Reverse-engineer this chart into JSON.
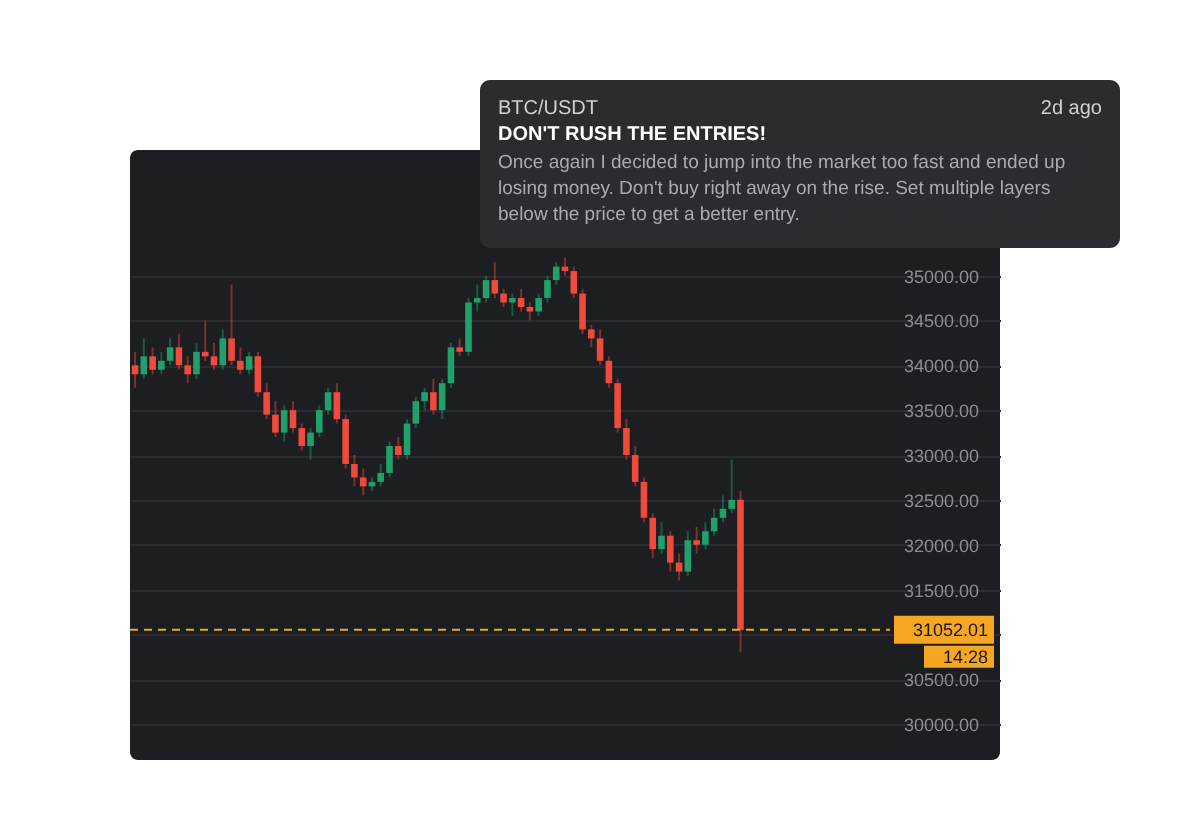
{
  "chart_data": {
    "type": "candlestick",
    "title": "DON'T RUSH THE ENTRIES!",
    "subtitle": "BTC/USDT",
    "annotations": [
      "2d ago",
      "Once again I decided to jump into the market too fast and ended up losing money. Don't buy right away on the rise. Set multiple layers below the price to get a better entry.",
      "14:28"
    ],
    "categories": [
      null,
      null,
      null,
      null,
      null,
      null,
      null,
      null,
      null,
      null,
      null,
      null,
      null,
      null,
      null,
      null,
      null,
      null,
      null,
      null,
      null,
      null,
      null,
      null,
      null,
      null,
      null,
      null,
      null,
      null,
      null,
      null,
      null,
      null,
      null,
      null,
      null,
      null,
      null,
      null,
      null,
      null,
      null,
      null,
      null,
      null,
      null,
      null,
      null,
      null,
      null,
      null,
      null,
      null,
      null,
      null,
      null,
      null,
      null,
      null,
      null,
      null,
      null,
      null,
      null,
      null,
      null,
      null,
      null,
      null,
      null,
      null,
      null,
      null,
      null,
      null,
      null,
      null,
      null,
      null,
      null,
      null,
      null,
      null,
      null,
      null,
      null,
      null,
      null,
      null,
      null,
      null,
      null,
      null,
      null,
      null,
      null,
      null,
      null
    ],
    "ohlc": [
      [
        34000,
        34150,
        33750,
        33900
      ],
      [
        33900,
        34300,
        33850,
        34100
      ],
      [
        34100,
        34200,
        33900,
        33950
      ],
      [
        33950,
        34150,
        33900,
        34050
      ],
      [
        34050,
        34300,
        34000,
        34200
      ],
      [
        34200,
        34350,
        33950,
        34000
      ],
      [
        34000,
        34100,
        33800,
        33900
      ],
      [
        33900,
        34250,
        33850,
        34150
      ],
      [
        34150,
        34500,
        34050,
        34100
      ],
      [
        34100,
        34250,
        33950,
        34000
      ],
      [
        34000,
        34400,
        33950,
        34300
      ],
      [
        34300,
        34900,
        34000,
        34050
      ],
      [
        34050,
        34200,
        33900,
        33950
      ],
      [
        33950,
        34150,
        33900,
        34100
      ],
      [
        34100,
        34150,
        33650,
        33700
      ],
      [
        33700,
        33800,
        33400,
        33450
      ],
      [
        33450,
        33600,
        33200,
        33250
      ],
      [
        33250,
        33550,
        33150,
        33500
      ],
      [
        33500,
        33600,
        33250,
        33300
      ],
      [
        33300,
        33350,
        33050,
        33100
      ],
      [
        33100,
        33300,
        32950,
        33250
      ],
      [
        33250,
        33550,
        33200,
        33500
      ],
      [
        33500,
        33750,
        33450,
        33700
      ],
      [
        33700,
        33800,
        33350,
        33400
      ],
      [
        33400,
        33450,
        32850,
        32900
      ],
      [
        32900,
        33000,
        32650,
        32750
      ],
      [
        32750,
        32850,
        32550,
        32650
      ],
      [
        32650,
        32750,
        32600,
        32700
      ],
      [
        32700,
        32900,
        32650,
        32800
      ],
      [
        32800,
        33150,
        32750,
        33100
      ],
      [
        33100,
        33200,
        32950,
        33000
      ],
      [
        33000,
        33400,
        32950,
        33350
      ],
      [
        33350,
        33650,
        33300,
        33600
      ],
      [
        33600,
        33750,
        33500,
        33700
      ],
      [
        33700,
        33850,
        33450,
        33500
      ],
      [
        33500,
        33850,
        33400,
        33800
      ],
      [
        33800,
        34250,
        33750,
        34200
      ],
      [
        34200,
        34300,
        34100,
        34150
      ],
      [
        34150,
        34750,
        34100,
        34700
      ],
      [
        34700,
        34900,
        34600,
        34750
      ],
      [
        34750,
        35000,
        34700,
        34950
      ],
      [
        34950,
        35150,
        34750,
        34800
      ],
      [
        34800,
        34850,
        34650,
        34700
      ],
      [
        34700,
        34800,
        34550,
        34750
      ],
      [
        34750,
        34850,
        34600,
        34650
      ],
      [
        34650,
        34700,
        34500,
        34600
      ],
      [
        34600,
        34800,
        34550,
        34750
      ],
      [
        34750,
        35000,
        34700,
        34950
      ],
      [
        34950,
        35150,
        34900,
        35100
      ],
      [
        35100,
        35200,
        35000,
        35050
      ],
      [
        35050,
        35100,
        34750,
        34800
      ],
      [
        34800,
        34850,
        34350,
        34400
      ],
      [
        34400,
        34450,
        34200,
        34300
      ],
      [
        34300,
        34400,
        34000,
        34050
      ],
      [
        34050,
        34100,
        33750,
        33800
      ],
      [
        33800,
        33850,
        33250,
        33300
      ],
      [
        33300,
        33400,
        32950,
        33000
      ],
      [
        33000,
        33100,
        32650,
        32700
      ],
      [
        32700,
        32750,
        32250,
        32300
      ],
      [
        32300,
        32350,
        31850,
        31950
      ],
      [
        31950,
        32250,
        31900,
        32100
      ],
      [
        32100,
        32150,
        31700,
        31800
      ],
      [
        31800,
        31900,
        31600,
        31700
      ],
      [
        31700,
        32150,
        31650,
        32050
      ],
      [
        32050,
        32200,
        31900,
        32000
      ],
      [
        32000,
        32250,
        31950,
        32150
      ],
      [
        32150,
        32400,
        32100,
        32300
      ],
      [
        32300,
        32550,
        32250,
        32400
      ],
      [
        32400,
        32950,
        32350,
        32500
      ],
      [
        32500,
        32600,
        30800,
        31052.01
      ],
      null,
      null,
      null,
      null,
      null,
      null,
      null,
      null,
      null,
      null,
      null,
      null,
      null,
      null,
      null,
      null,
      null,
      null,
      null,
      null,
      null,
      null,
      null,
      null,
      null,
      null,
      null,
      null,
      null
    ],
    "colors": [
      "#ef4a3c",
      "#22a06b",
      "#ef4a3c",
      "#22a06b",
      "#22a06b",
      "#ef4a3c",
      "#ef4a3c",
      "#22a06b",
      "#ef4a3c",
      "#ef4a3c",
      "#22a06b",
      "#ef4a3c",
      "#ef4a3c",
      "#22a06b",
      "#ef4a3c",
      "#ef4a3c",
      "#ef4a3c",
      "#22a06b",
      "#ef4a3c",
      "#ef4a3c",
      "#22a06b",
      "#22a06b",
      "#22a06b",
      "#ef4a3c",
      "#ef4a3c",
      "#ef4a3c",
      "#ef4a3c",
      "#22a06b",
      "#22a06b",
      "#22a06b",
      "#ef4a3c",
      "#22a06b",
      "#22a06b",
      "#22a06b",
      "#ef4a3c",
      "#22a06b",
      "#22a06b",
      "#ef4a3c",
      "#22a06b",
      "#22a06b",
      "#22a06b",
      "#ef4a3c",
      "#ef4a3c",
      "#22a06b",
      "#ef4a3c",
      "#ef4a3c",
      "#22a06b",
      "#22a06b",
      "#22a06b",
      "#ef4a3c",
      "#ef4a3c",
      "#ef4a3c",
      "#ef4a3c",
      "#ef4a3c",
      "#ef4a3c",
      "#ef4a3c",
      "#ef4a3c",
      "#ef4a3c",
      "#ef4a3c",
      "#ef4a3c",
      "#22a06b",
      "#ef4a3c",
      "#ef4a3c",
      "#22a06b",
      "#ef4a3c",
      "#22a06b",
      "#22a06b",
      "#22a06b",
      "#22a06b",
      "#ef4a3c",
      null,
      null,
      null,
      null,
      null,
      null,
      null,
      null,
      null,
      null,
      null,
      null,
      null,
      null,
      null,
      null,
      null,
      null,
      null,
      null,
      null,
      null,
      null,
      null,
      null,
      null,
      null,
      null,
      null
    ],
    "ylim": [
      29600,
      36400
    ],
    "yticks": [
      {
        "value": 30000,
        "label": "30000.00"
      },
      {
        "value": 30500,
        "label": "30500.00"
      },
      {
        "value": 31000,
        "label": null
      },
      {
        "value": 31500,
        "label": "31500.00"
      },
      {
        "value": 32000,
        "label": "32000.00"
      },
      {
        "value": 32500,
        "label": "32500.00"
      },
      {
        "value": 33000,
        "label": "33000.00"
      },
      {
        "value": 33500,
        "label": "33500.00"
      },
      {
        "value": 34000,
        "label": "34000.00"
      },
      {
        "value": 34500,
        "label": "34500.00"
      },
      {
        "value": 35000,
        "label": "35000.00"
      }
    ],
    "grid": "y",
    "ref_lines": [
      {
        "axis": "y",
        "value": 31052.01,
        "label": "31052.01",
        "color": "#f5a623",
        "line_style": "dashed"
      }
    ]
  }
}
